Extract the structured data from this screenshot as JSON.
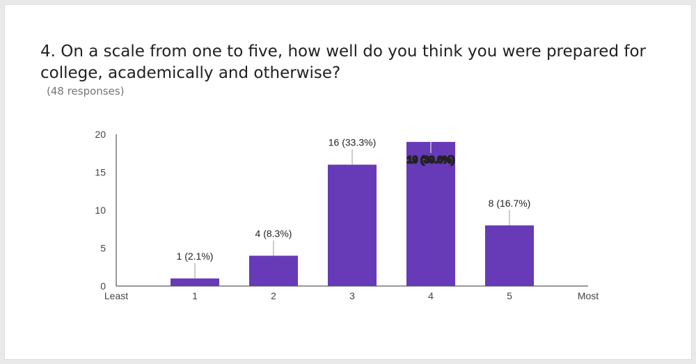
{
  "question": {
    "title": "4. On a scale from one to five, how well do you think you were prepared for college, academically and otherwise?",
    "responses": "(48 responses)"
  },
  "chart_data": {
    "type": "bar",
    "categories": [
      "1",
      "2",
      "3",
      "4",
      "5"
    ],
    "values": [
      1,
      4,
      16,
      19,
      8
    ],
    "data_labels": [
      "1 (2.1%)",
      "4 (8.3%)",
      "16 (33.3%)",
      "19 (39.6%)",
      "8 (16.7%)"
    ],
    "x_end_labels": [
      "Least",
      "Most"
    ],
    "yticks": [
      0,
      5,
      10,
      15,
      20
    ],
    "ylim": [
      0,
      20
    ],
    "grid": false,
    "bar_color": "#673ab7"
  }
}
